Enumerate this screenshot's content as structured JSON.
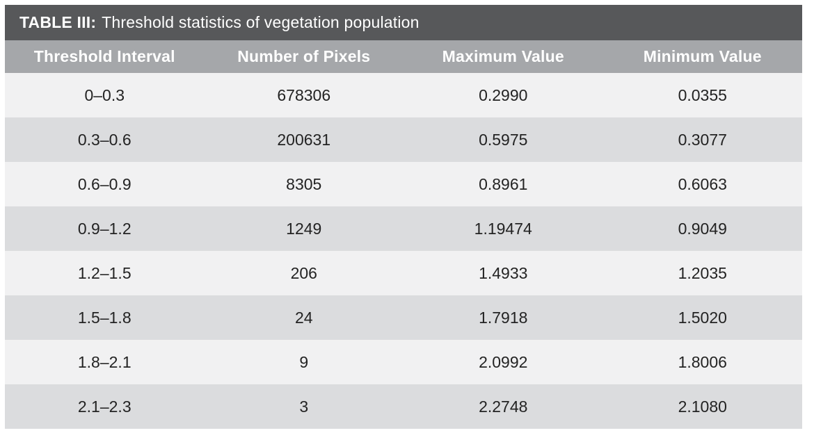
{
  "table": {
    "title": {
      "label": "TABLE III:",
      "text": "Threshold statistics of vegetation population"
    },
    "columns": [
      "Threshold Interval",
      "Number of Pixels",
      "Maximum Value",
      "Minimum Value"
    ],
    "rows": [
      [
        "0–0.3",
        "678306",
        "0.2990",
        "0.0355"
      ],
      [
        "0.3–0.6",
        "200631",
        "0.5975",
        "0.3077"
      ],
      [
        "0.6–0.9",
        "8305",
        "0.8961",
        "0.6063"
      ],
      [
        "0.9–1.2",
        "1249",
        "1.19474",
        "0.9049"
      ],
      [
        "1.2–1.5",
        "206",
        "1.4933",
        "1.2035"
      ],
      [
        "1.5–1.8",
        "24",
        "1.7918",
        "1.5020"
      ],
      [
        "1.8–2.1",
        "9",
        "2.0992",
        "1.8006"
      ],
      [
        "2.1–2.3",
        "3",
        "2.2748",
        "2.1080"
      ]
    ],
    "colors": {
      "title_bar_bg": "#57585a",
      "header_bg": "#a5a7aa",
      "row_light_bg": "#f1f1f2",
      "row_dark_bg": "#dbdcde",
      "header_text": "#ffffff",
      "cell_text": "#232323"
    }
  }
}
